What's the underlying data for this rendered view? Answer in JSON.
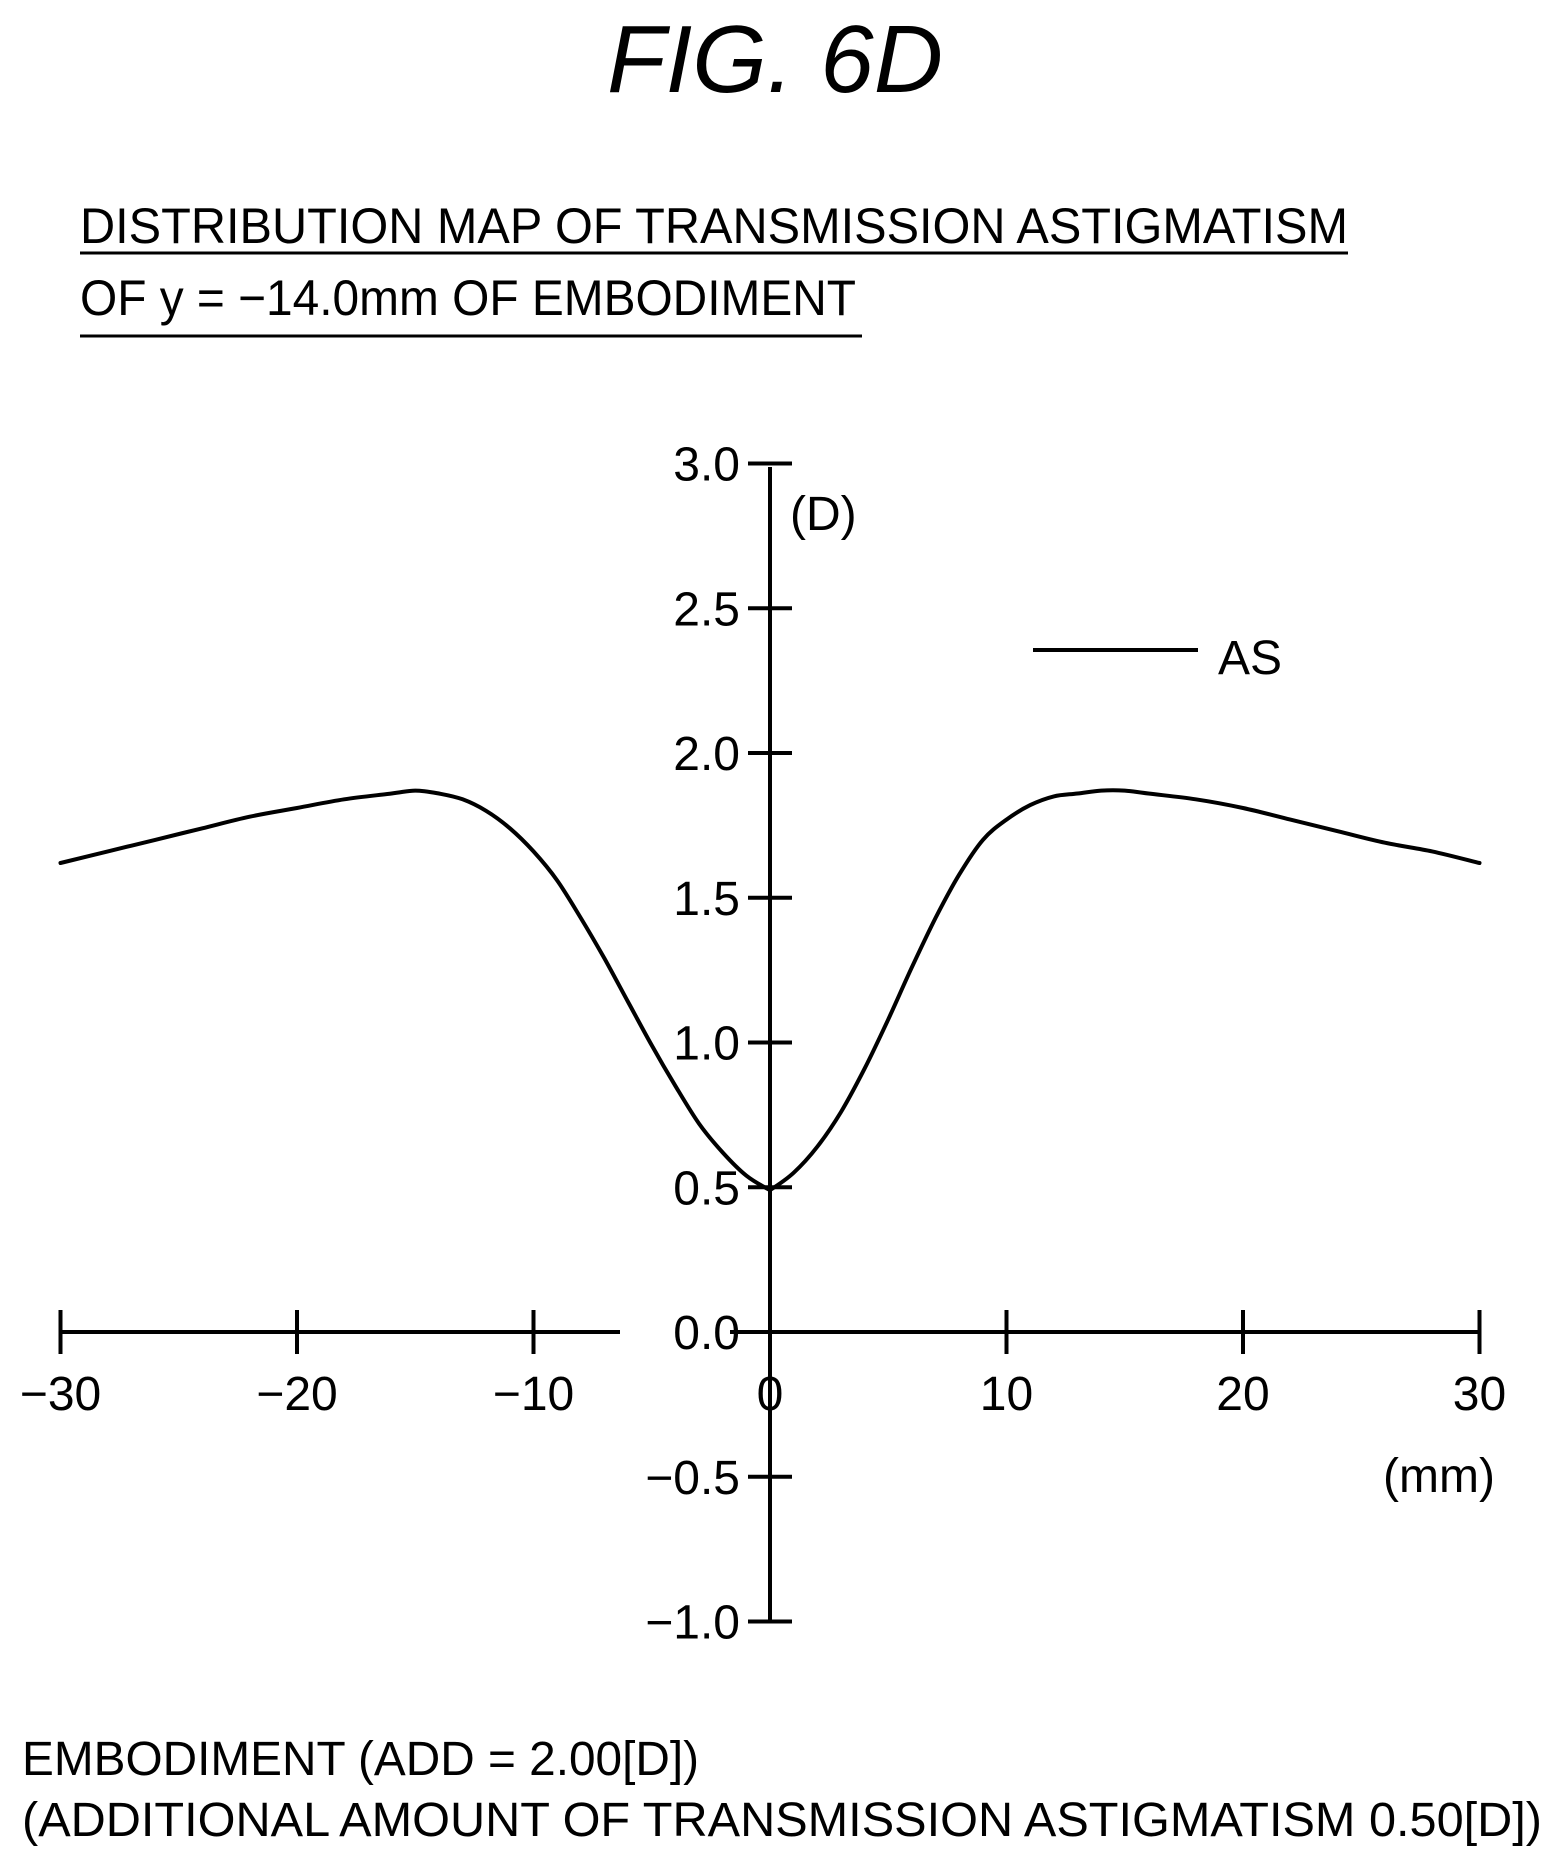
{
  "figure": {
    "title": "FIG. 6D"
  },
  "heading": {
    "line1": "DISTRIBUTION MAP OF TRANSMISSION ASTIGMATISM",
    "line2": "OF y = −14.0mm OF EMBODIMENT"
  },
  "footer": {
    "line1": "EMBODIMENT (ADD = 2.00[D])",
    "line2": "(ADDITIONAL AMOUNT OF TRANSMISSION ASTIGMATISM 0.50[D])"
  },
  "chart_data": {
    "type": "line",
    "xunit": "(mm)",
    "yunit": "(D)",
    "xlim": [
      -30,
      30
    ],
    "ylim": [
      -1.0,
      3.0
    ],
    "xticks": [
      -30,
      -20,
      -10,
      0,
      10,
      20,
      30
    ],
    "xtick_labels": [
      "−30",
      "−20",
      "−10",
      "0",
      "10",
      "20",
      "30"
    ],
    "yticks": [
      -1.0,
      -0.5,
      0.0,
      0.5,
      1.0,
      1.5,
      2.0,
      2.5,
      3.0
    ],
    "ytick_labels": [
      "−1.0",
      "−0.5",
      "0.0",
      "0.5",
      "1.0",
      "1.5",
      "2.0",
      "2.5",
      "3.0"
    ],
    "grid": false,
    "legend_position": "top-right",
    "series": [
      {
        "name": "AS",
        "color": "#000000",
        "x": [
          -30,
          -28,
          -26,
          -24,
          -22,
          -20,
          -18,
          -16,
          -15,
          -14,
          -13,
          -12,
          -11,
          -10,
          -9,
          -8,
          -7,
          -6,
          -5,
          -4,
          -3,
          -2,
          -1,
          0,
          1,
          2,
          3,
          4,
          5,
          6,
          7,
          8,
          9,
          10,
          11,
          12,
          13,
          14,
          15,
          16,
          18,
          20,
          22,
          24,
          26,
          28,
          30
        ],
        "y": [
          1.62,
          1.66,
          1.7,
          1.74,
          1.78,
          1.81,
          1.84,
          1.86,
          1.87,
          1.86,
          1.84,
          1.8,
          1.74,
          1.66,
          1.56,
          1.43,
          1.29,
          1.14,
          0.99,
          0.85,
          0.72,
          0.62,
          0.54,
          0.49,
          0.55,
          0.64,
          0.76,
          0.91,
          1.08,
          1.26,
          1.43,
          1.58,
          1.7,
          1.77,
          1.82,
          1.85,
          1.86,
          1.87,
          1.87,
          1.86,
          1.84,
          1.81,
          1.77,
          1.73,
          1.69,
          1.66,
          1.62
        ]
      }
    ]
  }
}
